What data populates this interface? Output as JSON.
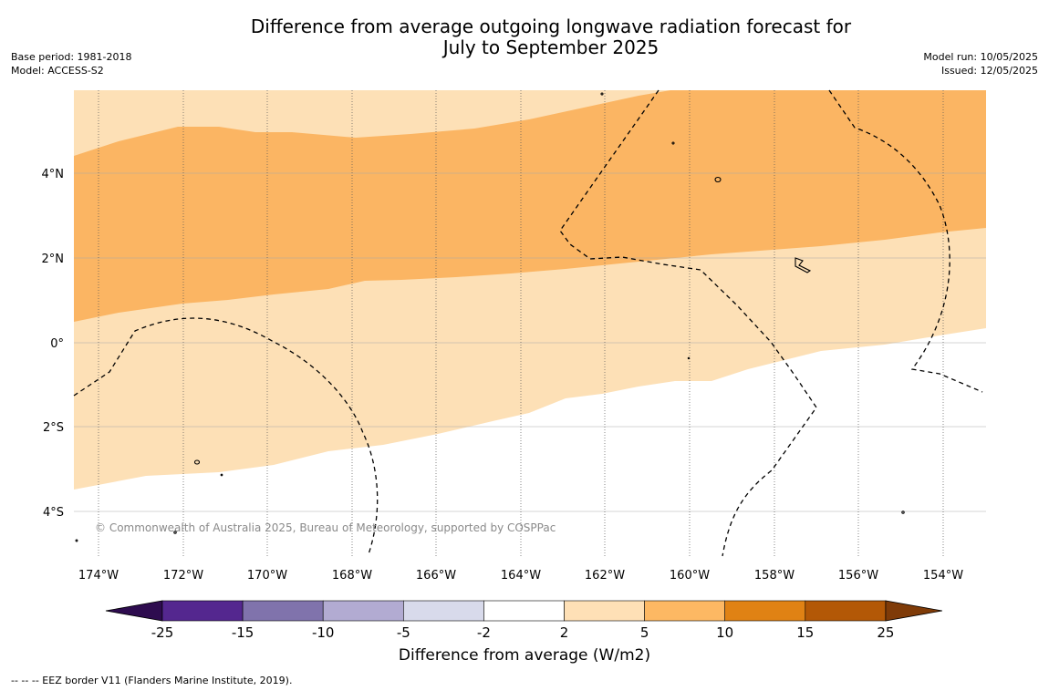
{
  "title_line1": "Difference from average outgoing longwave radiation forecast for",
  "title_line2": "July to September 2025",
  "meta_left": {
    "base_period": "Base period: 1981-2018",
    "model": "Model: ACCESS-S2"
  },
  "meta_right": {
    "model_run": "Model run: 10/05/2025",
    "issued": "Issued: 12/05/2025"
  },
  "copyright": "© Commonwealth of Australia 2025, Bureau of Meteorology, supported by COSPPac",
  "lat_ticks": [
    "4°N",
    "2°N",
    "0°",
    "2°S",
    "4°S"
  ],
  "lon_ticks": [
    "174°W",
    "172°W",
    "170°W",
    "168°W",
    "166°W",
    "164°W",
    "162°W",
    "160°W",
    "158°W",
    "156°W",
    "154°W"
  ],
  "colorbar": {
    "label": "Difference from average (W/m2)",
    "ticks": [
      "-25",
      "-15",
      "-10",
      "-5",
      "-2",
      "2",
      "5",
      "10",
      "15",
      "25"
    ],
    "colors": [
      "#2e0c4f",
      "#54278f",
      "#8073ac",
      "#b2abd2",
      "#d8daeb",
      "#ffffff",
      "#fee0b6",
      "#fdb863",
      "#e08214",
      "#b35806",
      "#7f3b08"
    ]
  },
  "footnote": "-- -- -- EEZ border V11 (Flanders Marine Institute, 2019)."
}
